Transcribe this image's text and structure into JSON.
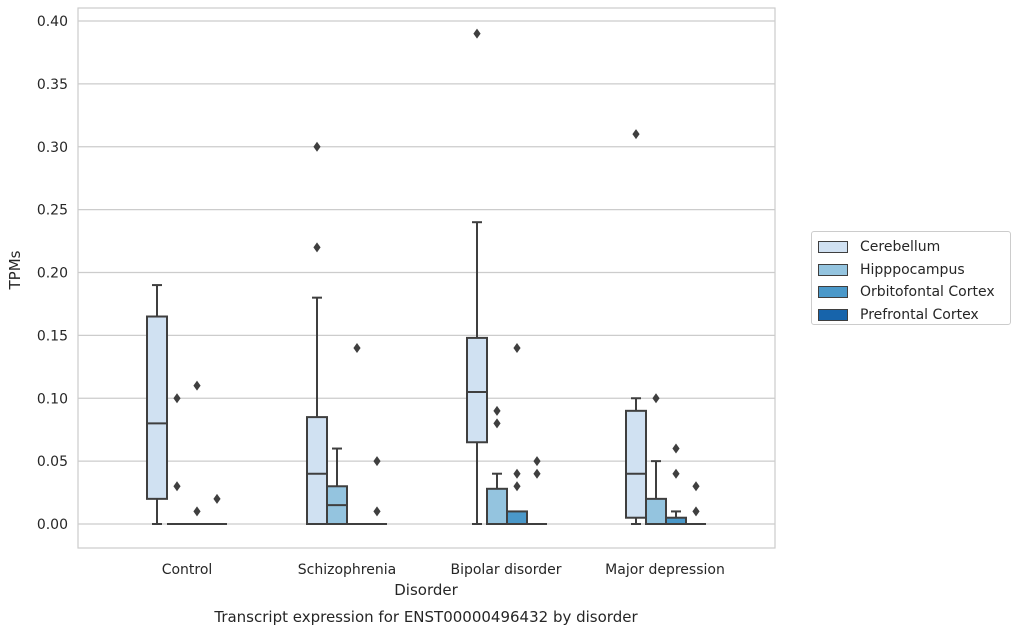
{
  "chart_data": {
    "type": "box",
    "title": "",
    "caption": "Transcript expression for ENST00000496432 by disorder",
    "xlabel": "Disorder",
    "ylabel": "TPMs",
    "ylim": [
      -0.02,
      0.41
    ],
    "yticks": [
      "0.00",
      "0.05",
      "0.10",
      "0.15",
      "0.20",
      "0.25",
      "0.30",
      "0.35",
      "0.40"
    ],
    "grid": "horizontal",
    "legend_position": "right",
    "categories": [
      "Control",
      "Schizophrenia",
      "Bipolar disorder",
      "Major depression"
    ],
    "series": [
      {
        "name": "Cerebellum",
        "color": "#d0e1f2",
        "boxes": [
          {
            "whislo": 0.0,
            "q1": 0.02,
            "med": 0.08,
            "q3": 0.165,
            "whishi": 0.19,
            "fliers": []
          },
          {
            "whislo": 0.0,
            "q1": 0.0,
            "med": 0.04,
            "q3": 0.085,
            "whishi": 0.18,
            "fliers": [
              0.3,
              0.22
            ]
          },
          {
            "whislo": 0.0,
            "q1": 0.065,
            "med": 0.105,
            "q3": 0.148,
            "whishi": 0.24,
            "fliers": [
              0.39
            ]
          },
          {
            "whislo": 0.0,
            "q1": 0.005,
            "med": 0.04,
            "q3": 0.09,
            "whishi": 0.1,
            "fliers": [
              0.31
            ]
          }
        ]
      },
      {
        "name": "Hipppocampus",
        "color": "#94c4df",
        "boxes": [
          {
            "whislo": 0.0,
            "q1": 0.0,
            "med": 0.0,
            "q3": 0.0,
            "whishi": 0.0,
            "fliers": [
              0.1,
              0.03
            ]
          },
          {
            "whislo": 0.0,
            "q1": 0.0,
            "med": 0.015,
            "q3": 0.03,
            "whishi": 0.06,
            "fliers": []
          },
          {
            "whislo": 0.0,
            "q1": 0.0,
            "med": 0.0,
            "q3": 0.028,
            "whishi": 0.04,
            "fliers": [
              0.09,
              0.08
            ]
          },
          {
            "whislo": 0.0,
            "q1": 0.0,
            "med": 0.0,
            "q3": 0.02,
            "whishi": 0.05,
            "fliers": [
              0.1
            ]
          }
        ]
      },
      {
        "name": "Orbitofontal Cortex",
        "color": "#4a98c9",
        "boxes": [
          {
            "whislo": 0.0,
            "q1": 0.0,
            "med": 0.0,
            "q3": 0.0,
            "whishi": 0.0,
            "fliers": [
              0.11,
              0.01
            ]
          },
          {
            "whislo": 0.0,
            "q1": 0.0,
            "med": 0.0,
            "q3": 0.0,
            "whishi": 0.0,
            "fliers": [
              0.14
            ]
          },
          {
            "whislo": 0.0,
            "q1": 0.0,
            "med": 0.0,
            "q3": 0.01,
            "whishi": 0.01,
            "fliers": [
              0.14,
              0.04,
              0.03
            ]
          },
          {
            "whislo": 0.0,
            "q1": 0.0,
            "med": 0.0,
            "q3": 0.005,
            "whishi": 0.01,
            "fliers": [
              0.06,
              0.04
            ]
          }
        ]
      },
      {
        "name": "Prefrontal Cortex",
        "color": "#1764ab",
        "boxes": [
          {
            "whislo": 0.0,
            "q1": 0.0,
            "med": 0.0,
            "q3": 0.0,
            "whishi": 0.0,
            "fliers": [
              0.02
            ]
          },
          {
            "whislo": 0.0,
            "q1": 0.0,
            "med": 0.0,
            "q3": 0.0,
            "whishi": 0.0,
            "fliers": [
              0.05,
              0.01
            ]
          },
          {
            "whislo": 0.0,
            "q1": 0.0,
            "med": 0.0,
            "q3": 0.0,
            "whishi": 0.0,
            "fliers": [
              0.05,
              0.04
            ]
          },
          {
            "whislo": 0.0,
            "q1": 0.0,
            "med": 0.0,
            "q3": 0.0,
            "whishi": 0.0,
            "fliers": [
              0.03,
              0.01
            ]
          }
        ]
      }
    ]
  }
}
